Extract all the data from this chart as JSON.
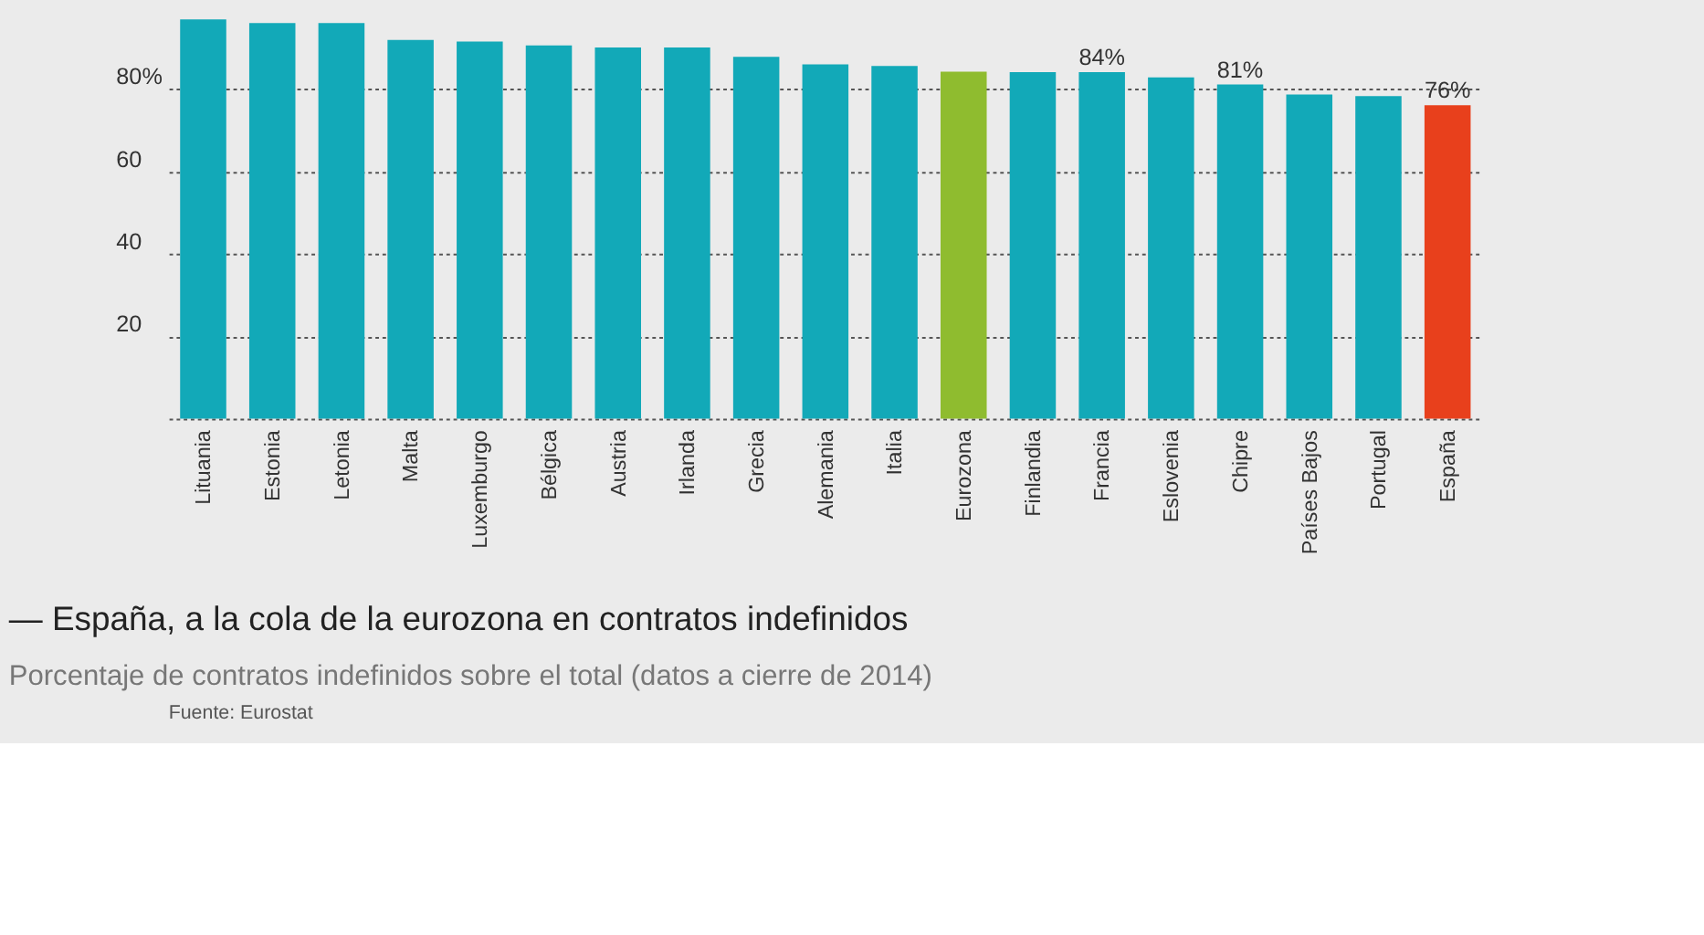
{
  "chart_data": {
    "type": "bar",
    "title": "— España, a la cola de la eurozona en contratos indefinidos",
    "subtitle": "Porcentaje de contratos indefinidos sobre el total (datos a cierre de 2014)",
    "categories": [
      "Lituania",
      "Estonia",
      "Letonia",
      "Malta",
      "Luxemburgo",
      "Bélgica",
      "Austria",
      "Irlanda",
      "Grecia",
      "Alemania",
      "Italia",
      "Eurozona",
      "Finlandia",
      "Francia",
      "Eslovenia",
      "Chipre",
      "Países Bajos",
      "Portugal",
      "España"
    ],
    "values": [
      96.8,
      95.9,
      95.9,
      91.8,
      91.4,
      90.5,
      90,
      90,
      87.7,
      85.9,
      85.5,
      84.1,
      84,
      84,
      82.7,
      81,
      78.6,
      78.2,
      76
    ],
    "colors": [
      "#12a9b8",
      "#12a9b8",
      "#12a9b8",
      "#12a9b8",
      "#12a9b8",
      "#12a9b8",
      "#12a9b8",
      "#12a9b8",
      "#12a9b8",
      "#12a9b8",
      "#12a9b8",
      "#8fbc2f",
      "#12a9b8",
      "#12a9b8",
      "#12a9b8",
      "#12a9b8",
      "#12a9b8",
      "#12a9b8",
      "#e8401c"
    ],
    "value_labels": [
      null,
      null,
      null,
      null,
      null,
      null,
      null,
      null,
      null,
      null,
      null,
      null,
      null,
      "84%",
      null,
      "81%",
      null,
      null,
      "76%"
    ],
    "yticks": [
      {
        "value": 0,
        "label": null
      },
      20,
      40,
      60,
      {
        "value": 80,
        "label": "80%"
      }
    ],
    "ylim": [
      0,
      96.8
    ],
    "grid": "y",
    "annotations": [
      "Fuente: Eurostat"
    ]
  }
}
